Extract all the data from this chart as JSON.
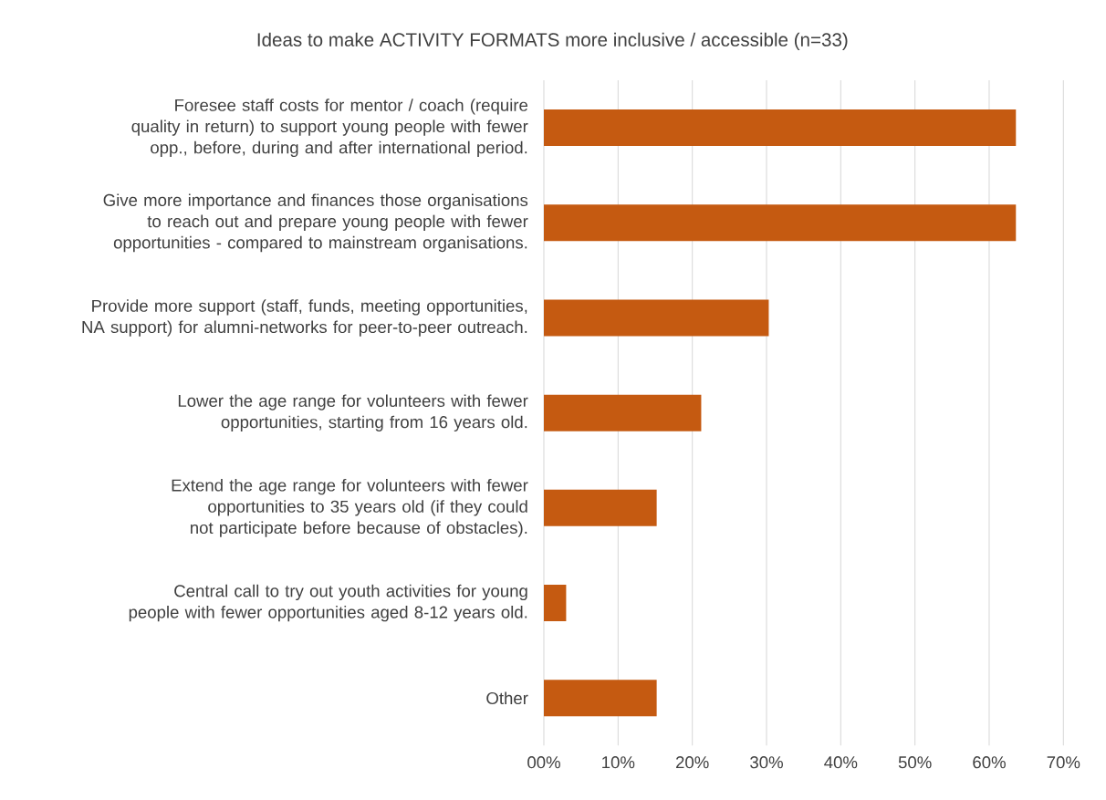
{
  "chart_data": {
    "type": "bar",
    "orientation": "horizontal",
    "title": "Ideas to make ACTIVITY FORMATS more inclusive / accessible (n=33)",
    "categories": [
      "Foresee staff costs for mentor / coach (require quality in return) to support young people with fewer opp., before, during and after international period.",
      "Give more importance and finances those organisations to reach out and prepare young people with fewer opportunities - compared to mainstream organisations.",
      "Provide more support (staff, funds, meeting opportunities, NA support) for alumni-networks for peer-to-peer outreach.",
      "Lower the age range for volunteers with fewer opportunities, starting from 16 years old.",
      "Extend the age range for volunteers with fewer opportunities to 35 years old (if they could not participate before because of obstacles).",
      "Central call to try out youth activities for young people with fewer opportunities aged 8-12 years old.",
      "Other"
    ],
    "values": [
      63.6,
      63.6,
      30.3,
      21.2,
      15.2,
      3.0,
      15.2
    ],
    "color": "#c55a11",
    "xlim": [
      0,
      70
    ],
    "xticks": [
      {
        "value": 0,
        "label": "00%"
      },
      {
        "value": 10,
        "label": "10%"
      },
      {
        "value": 20,
        "label": "20%"
      },
      {
        "value": 30,
        "label": "30%"
      },
      {
        "value": 40,
        "label": "40%"
      },
      {
        "value": 50,
        "label": "50%"
      },
      {
        "value": 60,
        "label": "60%"
      },
      {
        "value": 70,
        "label": "70%"
      }
    ],
    "grid": "x"
  }
}
